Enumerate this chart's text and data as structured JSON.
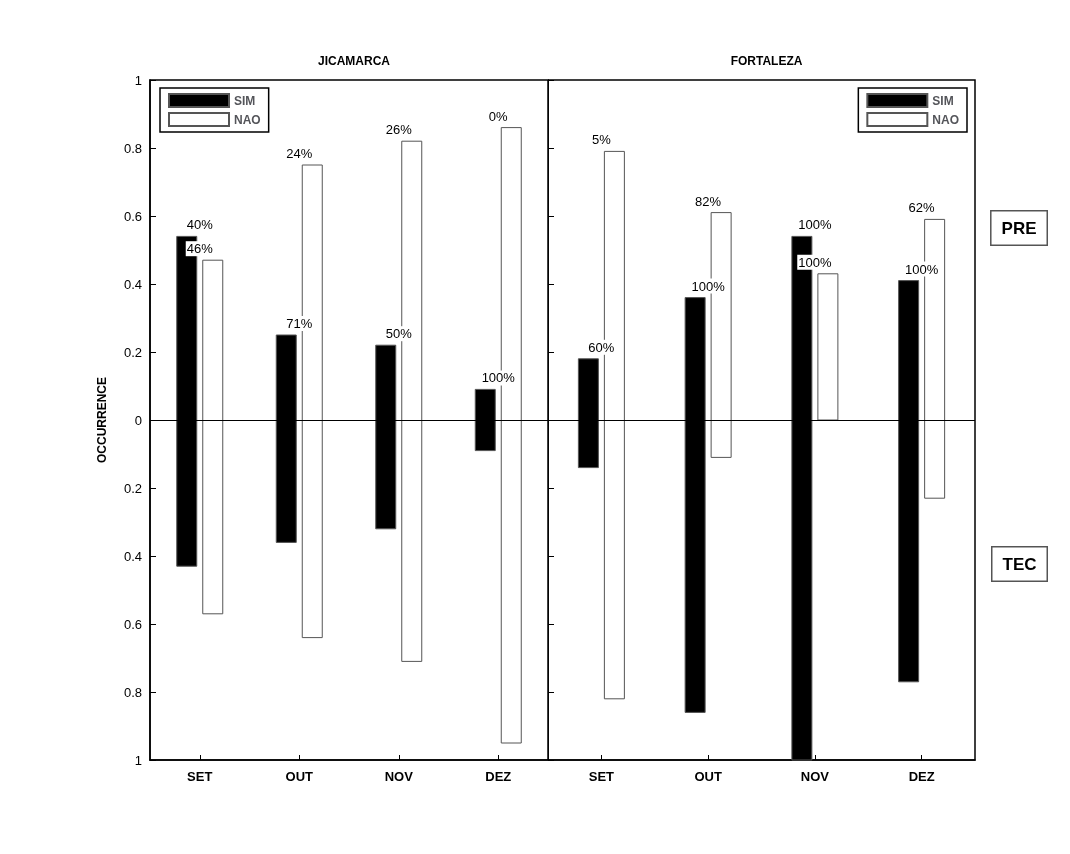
{
  "chart_data": [
    {
      "type": "bar",
      "title": "JICAMARCA",
      "ylabel": "OCCURRENCE",
      "categories": [
        "SET",
        "OUT",
        "NOV",
        "DEZ"
      ],
      "series": [
        {
          "name": "SIM",
          "color": "#000000",
          "base": [
            -0.43,
            -0.36,
            -0.32,
            -0.09
          ],
          "values": [
            0.97,
            0.61,
            0.54,
            0.18
          ]
        },
        {
          "name": "NAO",
          "color": "#ffffff",
          "base": [
            -0.57,
            -0.64,
            -0.71,
            -0.95
          ],
          "values": [
            1.04,
            1.39,
            1.53,
            1.81
          ]
        }
      ],
      "ylim": [
        -1,
        1
      ],
      "yticks": [
        {
          "value": -1,
          "label": "1"
        },
        {
          "value": -0.8,
          "label": "0.8"
        },
        {
          "value": -0.6,
          "label": "0.6"
        },
        {
          "value": -0.4,
          "label": "0.4"
        },
        {
          "value": -0.2,
          "label": "0.2"
        },
        0,
        0.2,
        0.4,
        0.6,
        0.8,
        1
      ],
      "ref_lines": [
        {
          "axis": "y",
          "value": 0,
          "color": "#000000"
        }
      ],
      "annotations": [
        {
          "text": "40%",
          "x": "SET",
          "y": 0.54
        },
        {
          "text": "46%",
          "x": "SET",
          "y": 0.47
        },
        {
          "text": "71%",
          "x": "OUT",
          "y": 0.25
        },
        {
          "text": "24%",
          "x": "OUT",
          "y": 0.75
        },
        {
          "text": "50%",
          "x": "NOV",
          "y": 0.22
        },
        {
          "text": "26%",
          "x": "NOV",
          "y": 0.82
        },
        {
          "text": "100%",
          "x": "DEZ",
          "y": 0.09
        },
        {
          "text": "0%",
          "x": "DEZ",
          "y": 0.86
        }
      ],
      "grid": false,
      "legend": "top left"
    },
    {
      "type": "bar",
      "title": "FORTALEZA",
      "categories": [
        "SET",
        "OUT",
        "NOV",
        "DEZ"
      ],
      "series": [
        {
          "name": "SIM",
          "color": "#000000",
          "base": [
            -0.14,
            -0.86,
            -1,
            -0.77
          ],
          "values": [
            0.32,
            1.22,
            1.54,
            1.18
          ]
        },
        {
          "name": "NAO",
          "color": "#ffffff",
          "base": [
            -0.82,
            -0.11,
            0,
            -0.23
          ],
          "values": [
            1.61,
            0.72,
            0.43,
            0.82
          ]
        }
      ],
      "ylim": [
        -1,
        1
      ],
      "yticks": [
        -1,
        -0.8,
        -0.6,
        -0.4,
        -0.2,
        0,
        0.2,
        0.4,
        0.6,
        0.8,
        1
      ],
      "tick_labels": "x",
      "ref_lines": [
        {
          "axis": "y",
          "value": 0,
          "color": "#000000"
        }
      ],
      "annotations": [
        {
          "text": "60%",
          "x": "SET",
          "y": 0.18
        },
        {
          "text": "5%",
          "x": "SET",
          "y": 0.79
        },
        {
          "text": "100%",
          "x": "OUT",
          "y": 0.36
        },
        {
          "text": "82%",
          "x": "OUT",
          "y": 0.61
        },
        {
          "text": "100%",
          "x": "NOV",
          "y": 0.54
        },
        {
          "text": "100%",
          "x": "NOV",
          "y": 0.43
        },
        {
          "text": "100%",
          "x": "DEZ",
          "y": 0.41
        },
        {
          "text": "62%",
          "x": "DEZ",
          "y": 0.59
        },
        "PRE",
        "TEC"
      ],
      "grid": false,
      "legend": "top right"
    }
  ]
}
